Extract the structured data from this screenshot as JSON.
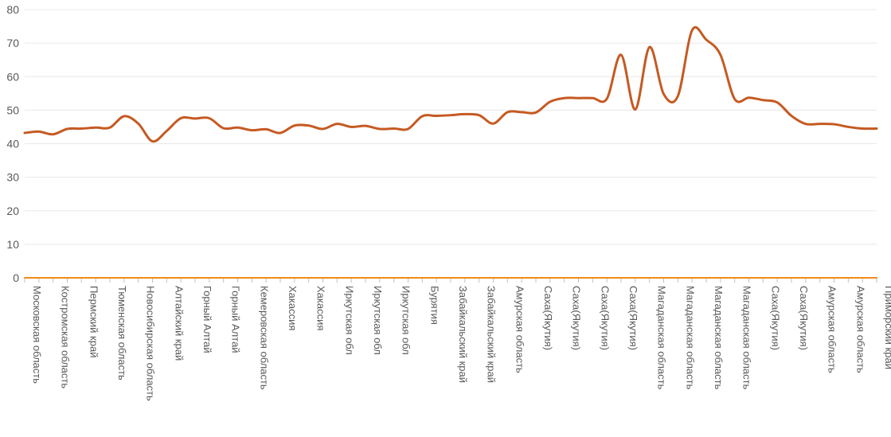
{
  "chart_data": {
    "type": "line",
    "title": "",
    "xlabel": "",
    "ylabel": "",
    "ylim": [
      0,
      80
    ],
    "yticks": [
      0,
      10,
      20,
      30,
      40,
      50,
      60,
      70,
      80
    ],
    "grid": "horizontal",
    "legend": "none",
    "categories": [
      "Московская область",
      "",
      "Костромская область",
      "",
      "Пермский край",
      "",
      "Тюменская область",
      "",
      "Новосибирская область",
      "",
      "Алтайский край",
      "",
      "Горный Алтай",
      "",
      "Горный Алтай",
      "",
      "Кемеровская область",
      "",
      "Хакассия",
      "",
      "Хакассия",
      "",
      "Иркутская обл",
      "",
      "Иркутская обл",
      "",
      "Иркутская обл",
      "",
      "Бурятия",
      "",
      "Забайкальский край",
      "",
      "Забайкальский край",
      "",
      "Амурская область",
      "",
      "Саха(Якутия)",
      "",
      "Саха(Якутия)",
      "",
      "Саха(Якутия)",
      "",
      "Саха(Якутия)",
      "",
      "Магаданская область",
      "",
      "Магаданская область",
      "",
      "Магаданская область",
      "",
      "Магаданская область",
      "",
      "Саха(Якутия)",
      "",
      "Саха(Якутия)",
      "",
      "Амурская область",
      "",
      "Амурская область",
      "",
      "Приморский край"
    ],
    "series": [
      {
        "values": [
          43.2,
          43.6,
          42.8,
          44.4,
          44.5,
          44.8,
          44.8,
          48.2,
          46,
          40.7,
          43.8,
          47.6,
          47.5,
          47.6,
          44.6,
          44.8,
          44,
          44.3,
          43.2,
          45.4,
          45.4,
          44.4,
          45.9,
          45,
          45.3,
          44.4,
          44.5,
          44.4,
          48.2,
          48.3,
          48.5,
          48.8,
          48.5,
          46,
          49.4,
          49.4,
          49.3,
          52.5,
          53.6,
          53.6,
          53.6,
          53.4,
          66.5,
          50.2,
          68.8,
          54.8,
          54.2,
          73.8,
          71,
          66.5,
          53.3,
          53.7,
          53,
          52.3,
          48.3,
          45.9,
          45.9,
          45.8,
          45,
          44.5,
          44.5
        ],
        "color": "#C55A22"
      },
      {
        "values": [
          0,
          0,
          0,
          0,
          0,
          0,
          0,
          0,
          0,
          0,
          0,
          0,
          0,
          0,
          0,
          0,
          0,
          0,
          0,
          0,
          0,
          0,
          0,
          0,
          0,
          0,
          0,
          0,
          0,
          0,
          0,
          0,
          0,
          0,
          0,
          0,
          0,
          0,
          0,
          0,
          0,
          0,
          0,
          0,
          0,
          0,
          0,
          0,
          0,
          0,
          0,
          0,
          0,
          0,
          0,
          0,
          0,
          0,
          0,
          0,
          0
        ],
        "color": "#F08A1C"
      }
    ],
    "colors": {
      "gridline": "#e8e8e8",
      "axis": "#bfbfbf",
      "text": "#595959"
    }
  }
}
